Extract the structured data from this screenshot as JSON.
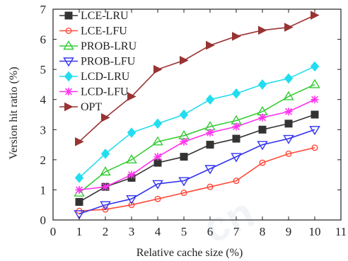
{
  "chart_data": {
    "type": "line",
    "xlabel": "Relative cache size (%)",
    "ylabel": "Version hit ratio (%)",
    "xlim": [
      0,
      11
    ],
    "ylim": [
      0,
      7
    ],
    "xticks": [
      0,
      1,
      2,
      3,
      4,
      5,
      6,
      7,
      8,
      9,
      10,
      11
    ],
    "yticks": [
      0,
      1,
      2,
      3,
      4,
      5,
      6,
      7
    ],
    "grid": false,
    "legend_position": "top-left",
    "x": [
      1,
      2,
      3,
      4,
      5,
      6,
      7,
      8,
      9,
      10
    ],
    "series": [
      {
        "name": "LCE-LRU",
        "color": "#333333",
        "marker": "square",
        "values": [
          0.6,
          1.1,
          1.4,
          1.9,
          2.1,
          2.5,
          2.7,
          3.0,
          3.2,
          3.5
        ]
      },
      {
        "name": "LCE-LFU",
        "color": "#ff4a3a",
        "marker": "circle",
        "values": [
          0.3,
          0.35,
          0.5,
          0.7,
          0.9,
          1.1,
          1.3,
          1.9,
          2.2,
          2.4
        ]
      },
      {
        "name": "PROB-LRU",
        "color": "#33cc33",
        "marker": "triangle-up",
        "values": [
          0.9,
          1.6,
          2.0,
          2.6,
          2.8,
          3.1,
          3.3,
          3.6,
          4.1,
          4.5
        ]
      },
      {
        "name": "PROB-LFU",
        "color": "#3333ee",
        "marker": "triangle-down",
        "values": [
          0.2,
          0.5,
          0.7,
          1.2,
          1.3,
          1.7,
          2.1,
          2.5,
          2.7,
          3.0
        ]
      },
      {
        "name": "LCD-LRU",
        "color": "#22ddee",
        "marker": "diamond",
        "values": [
          1.4,
          2.2,
          2.9,
          3.2,
          3.5,
          4.0,
          4.2,
          4.5,
          4.7,
          5.1
        ]
      },
      {
        "name": "LCD-LFU",
        "color": "#ff33ee",
        "marker": "star",
        "values": [
          1.0,
          1.1,
          1.5,
          2.1,
          2.6,
          2.9,
          3.1,
          3.4,
          3.6,
          4.0
        ]
      },
      {
        "name": "OPT",
        "color": "#993333",
        "marker": "triangle-right",
        "values": [
          2.6,
          3.4,
          4.1,
          5.0,
          5.3,
          5.8,
          6.1,
          6.3,
          6.4,
          6.8
        ]
      }
    ]
  }
}
